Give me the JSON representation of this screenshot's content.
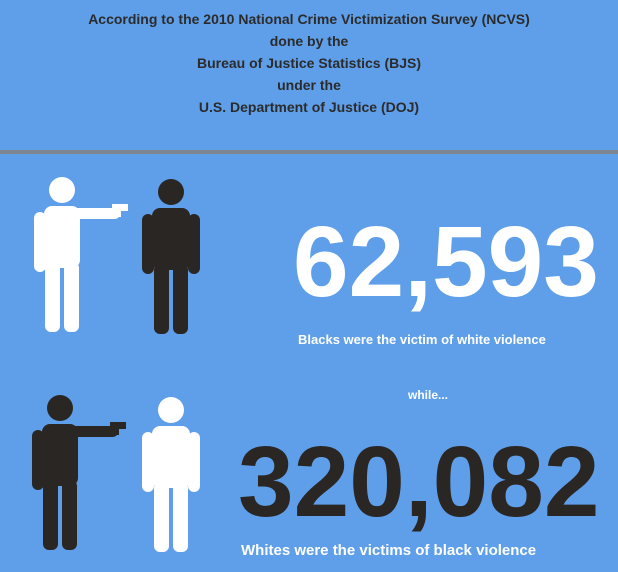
{
  "header": {
    "lines": [
      "According to the 2010 National Crime Victimization Survey (NCVS)",
      "done by the",
      "Bureau of Justice Statistics (BJS)",
      "under the",
      "U.S. Department of Justice (DOJ)"
    ]
  },
  "stat1": {
    "number": "62,593",
    "caption": "Blacks were the victim of white violence",
    "color": "#ffffff"
  },
  "connector": "while...",
  "stat2": {
    "number": "320,082",
    "caption": "Whites were the victims of black violence",
    "color": "#2a2624"
  },
  "colors": {
    "background": "#5f9fe9",
    "white_figure": "#ffffff",
    "black_figure": "#2a2624",
    "divider": "#7d8591"
  }
}
